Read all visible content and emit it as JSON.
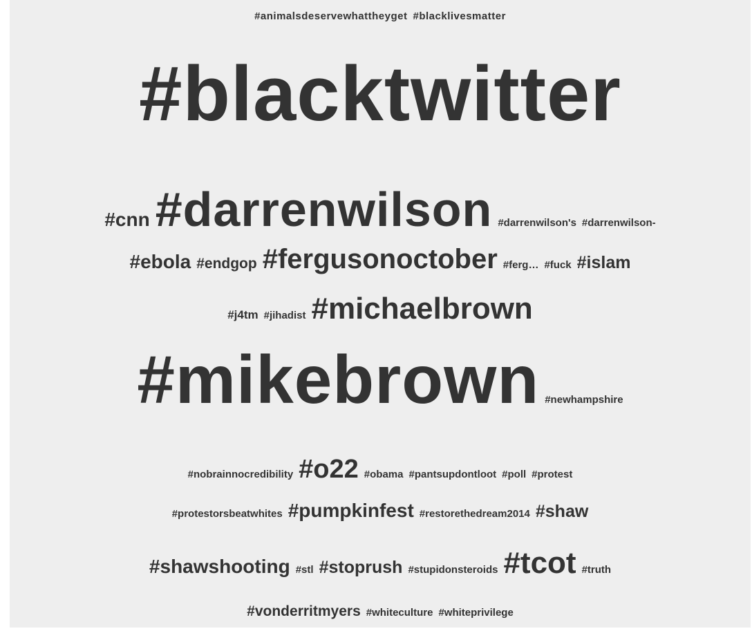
{
  "rows": [
    [
      "#animalsdeservewhattheyget",
      "#blacklivesmatter"
    ],
    [
      "#blacktwitter"
    ],
    [
      "#cnn",
      "#darrenwilson",
      "#darrenwilson's",
      "#darrenwilson-"
    ],
    [
      "#ebola",
      "#endgop",
      "#fergusonoctober",
      "#ferg…",
      "#fuck",
      "#islam"
    ],
    [
      "#j4tm",
      "#jihadist",
      "#michaelbrown"
    ],
    [
      "#mikebrown",
      "#newhampshire"
    ],
    [
      "#nobrainnocredibility",
      "#o22",
      "#obama",
      "#pantsupdontloot",
      "#poll",
      "#protest"
    ],
    [
      "#protestorsbeatwhites",
      "#pumpkinfest",
      "#restorethedream2014",
      "#shaw"
    ],
    [
      "#shawshooting",
      "#stl",
      "#stoprush",
      "#stupidonsteroids",
      "#tcot",
      "#truth"
    ],
    [
      "#vonderritmyers",
      "#whiteculture",
      "#whiteprivilege"
    ]
  ],
  "colors": {
    "text": "#333333",
    "background": "#eeeeee"
  }
}
